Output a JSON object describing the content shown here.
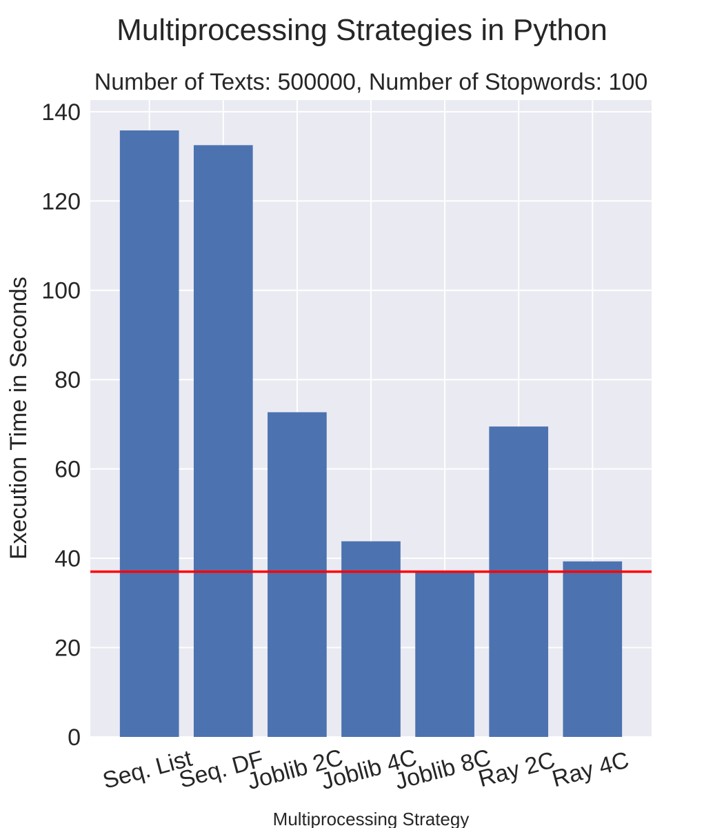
{
  "chart_data": {
    "type": "bar",
    "title": "Multiprocessing Strategies in Python",
    "subtitle": "Number of Texts: 500000, Number of Stopwords: 100",
    "xlabel": "Multiprocessing Strategy",
    "ylabel": "Execution Time in Seconds",
    "categories": [
      "Seq. List",
      "Seq. DF",
      "Joblib 2C",
      "Joblib 4C",
      "Joblib 8C",
      "Ray 2C",
      "Ray 4C"
    ],
    "values": [
      135.8,
      132.5,
      72.7,
      43.8,
      37.0,
      69.5,
      39.3
    ],
    "ylim": [
      0,
      142.6
    ],
    "yticks": [
      0,
      20,
      40,
      60,
      80,
      100,
      120,
      140
    ],
    "hline": {
      "y": 37.0,
      "color": "#ff0000"
    },
    "bar_color": "#4c72b0",
    "background_color": "#eaeaf2",
    "grid": true,
    "style": "seaborn"
  }
}
